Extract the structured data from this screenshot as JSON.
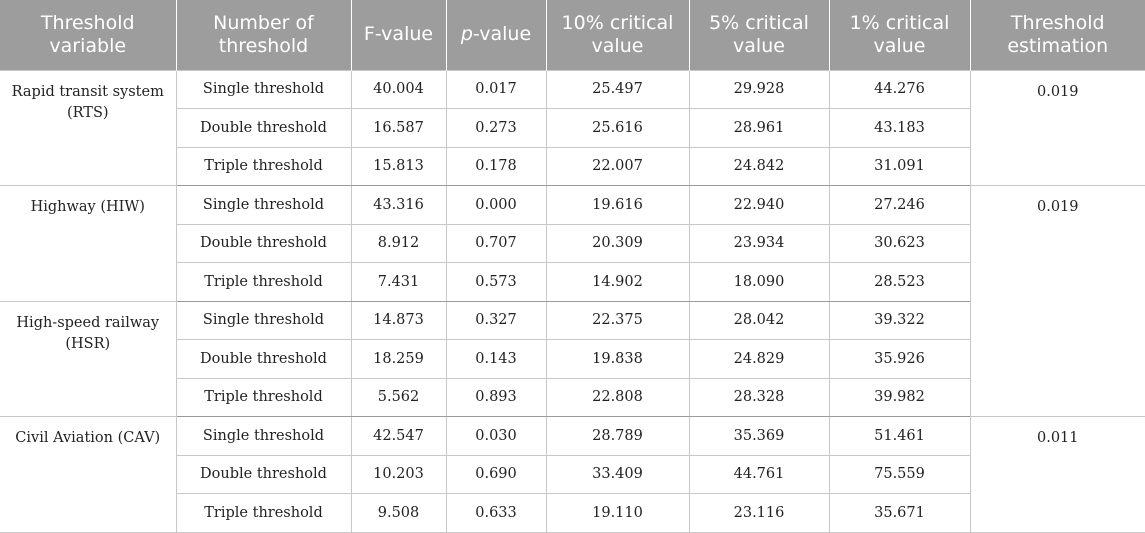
{
  "table": {
    "headers": {
      "threshold_variable": "Threshold variable",
      "number_of_threshold": "Number of threshold",
      "f_value": "F-value",
      "p_value_italic": "p",
      "p_value_suffix": "-value",
      "crit_10": "10% critical value",
      "crit_5": "5% critical value",
      "crit_1": "1% critical value",
      "threshold_estimation": "Threshold estimation"
    },
    "groups": [
      {
        "label": "Rapid transit system (RTS)",
        "threshold_estimation": "0.019",
        "rows": [
          {
            "number": "Single threshold",
            "f": "40.004",
            "p": "0.017",
            "c10": "25.497",
            "c5": "29.928",
            "c1": "44.276"
          },
          {
            "number": "Double threshold",
            "f": "16.587",
            "p": "0.273",
            "c10": "25.616",
            "c5": "28.961",
            "c1": "43.183"
          },
          {
            "number": "Triple threshold",
            "f": "15.813",
            "p": "0.178",
            "c10": "22.007",
            "c5": "24.842",
            "c1": "31.091"
          }
        ]
      },
      {
        "label": "Highway (HIW)",
        "threshold_estimation": "0.019",
        "rows": [
          {
            "number": "Single threshold",
            "f": "43.316",
            "p": "0.000",
            "c10": "19.616",
            "c5": "22.940",
            "c1": "27.246"
          },
          {
            "number": "Double threshold",
            "f": "8.912",
            "p": "0.707",
            "c10": "20.309",
            "c5": "23.934",
            "c1": "30.623"
          },
          {
            "number": "Triple threshold",
            "f": "7.431",
            "p": "0.573",
            "c10": "14.902",
            "c5": "18.090",
            "c1": "28.523"
          }
        ]
      },
      {
        "label": "High-speed railway (HSR)",
        "threshold_estimation": "",
        "rows": [
          {
            "number": "Single threshold",
            "f": "14.873",
            "p": "0.327",
            "c10": "22.375",
            "c5": "28.042",
            "c1": "39.322"
          },
          {
            "number": "Double threshold",
            "f": "18.259",
            "p": "0.143",
            "c10": "19.838",
            "c5": "24.829",
            "c1": "35.926"
          },
          {
            "number": "Triple threshold",
            "f": "5.562",
            "p": "0.893",
            "c10": "22.808",
            "c5": "28.328",
            "c1": "39.982"
          }
        ]
      },
      {
        "label": "Civil Aviation (CAV)",
        "threshold_estimation": "0.011",
        "rows": [
          {
            "number": "Single threshold",
            "f": "42.547",
            "p": "0.030",
            "c10": "28.789",
            "c5": "35.369",
            "c1": "51.461"
          },
          {
            "number": "Double threshold",
            "f": "10.203",
            "p": "0.690",
            "c10": "33.409",
            "c5": "44.761",
            "c1": "75.559"
          },
          {
            "number": "Triple threshold",
            "f": "9.508",
            "p": "0.633",
            "c10": "19.110",
            "c5": "23.116",
            "c1": "35.671"
          }
        ]
      }
    ]
  }
}
